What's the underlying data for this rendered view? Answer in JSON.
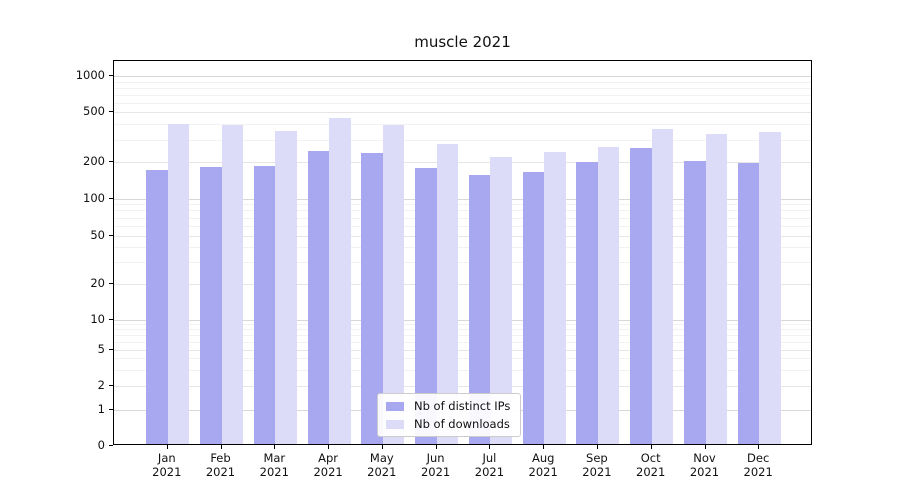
{
  "figure": {
    "title": "muscle 2021"
  },
  "chart_data": {
    "type": "bar",
    "title": "muscle 2021",
    "categories": [
      "Jan",
      "Feb",
      "Mar",
      "Apr",
      "May",
      "Jun",
      "Jul",
      "Aug",
      "Sep",
      "Oct",
      "Nov",
      "Dec"
    ],
    "year": "2021",
    "series": [
      {
        "name": "Nb of distinct IPs",
        "color": "#a8a8f0",
        "values": [
          166,
          176,
          182,
          237,
          229,
          172,
          151,
          161,
          195,
          250,
          198,
          191
        ]
      },
      {
        "name": "Nb of downloads",
        "color": "#dcdcf8",
        "values": [
          388,
          382,
          342,
          437,
          386,
          273,
          212,
          234,
          255,
          357,
          328,
          338
        ]
      }
    ],
    "xlabel": "",
    "ylabel": "",
    "yticks": [
      0,
      1,
      2,
      5,
      10,
      20,
      50,
      100,
      200,
      500,
      1000
    ],
    "minor_yticks": [
      3,
      4,
      6,
      7,
      8,
      9,
      30,
      40,
      60,
      70,
      80,
      90,
      300,
      400,
      600,
      700,
      800,
      900
    ],
    "yscale": "symlog",
    "ylim": [
      0,
      1300
    ],
    "grid": true,
    "legend_position": "lower-center"
  }
}
